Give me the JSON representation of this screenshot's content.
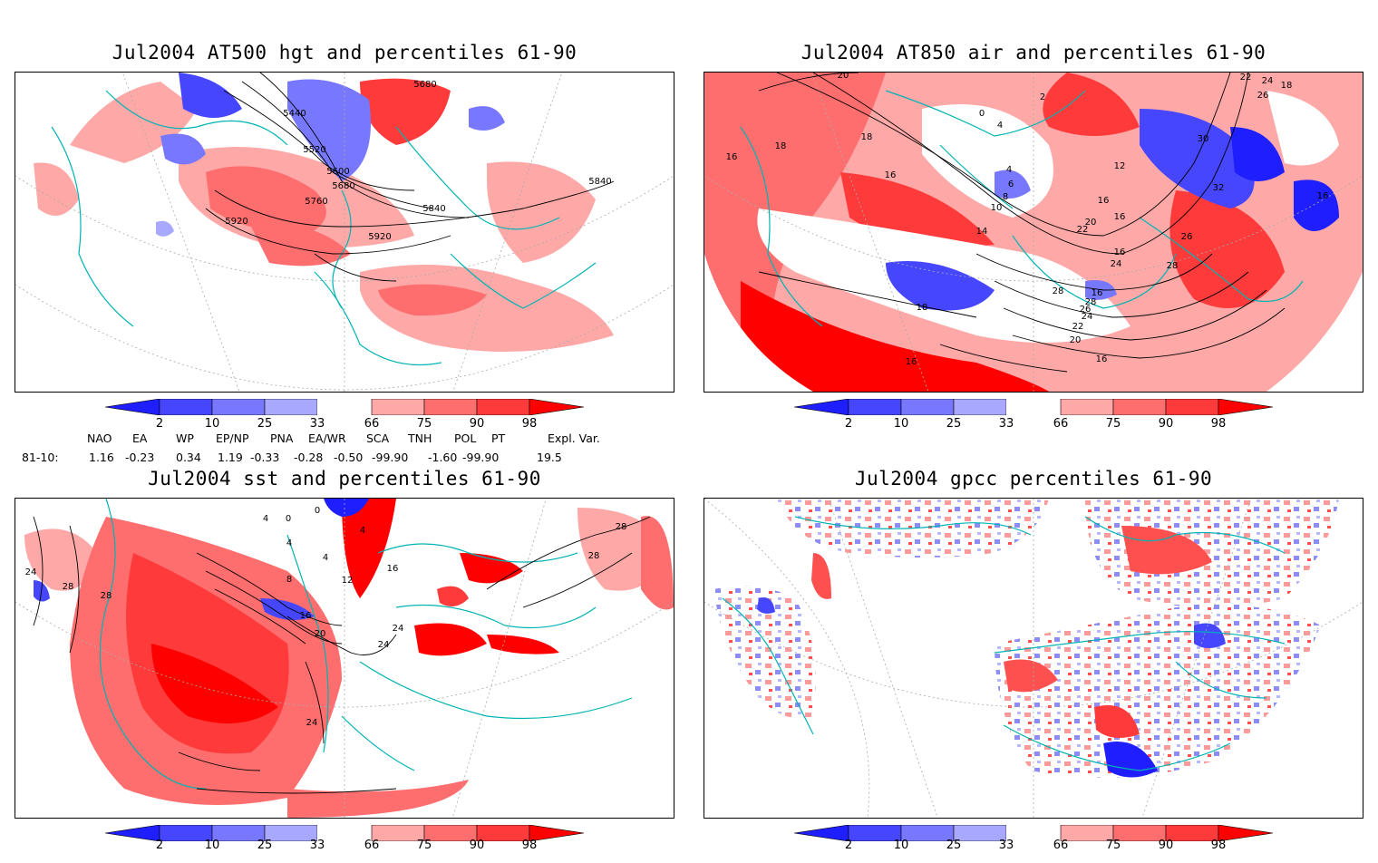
{
  "panels": [
    {
      "id": "p1",
      "title": "Jul2004 AT500 hgt and percentiles 61-90",
      "contour_labels": [
        "5680",
        "5440",
        "5520",
        "5600",
        "5680",
        "5760",
        "5840",
        "5840",
        "5920",
        "5920"
      ]
    },
    {
      "id": "p2",
      "title": "Jul2004 AT850 air and percentiles 61-90",
      "contour_labels": [
        "20",
        "2",
        "22",
        "24",
        "26",
        "18",
        "18",
        "0",
        "4",
        "16",
        "16",
        "18",
        "4",
        "6",
        "8",
        "10",
        "12",
        "30",
        "14",
        "16",
        "20",
        "22",
        "16",
        "32",
        "16",
        "24",
        "26",
        "28",
        "28",
        "16",
        "28",
        "26",
        "24",
        "22",
        "20",
        "18",
        "16",
        "16",
        "16"
      ]
    },
    {
      "id": "p3",
      "title": "Jul2004 sst and percentiles 61-90",
      "contour_labels": [
        "4",
        "0",
        "0",
        "4",
        "4",
        "4",
        "8",
        "12",
        "16",
        "16",
        "20",
        "24",
        "24",
        "28",
        "28",
        "24",
        "28",
        "28",
        "24"
      ]
    },
    {
      "id": "p4",
      "title": "Jul2004 gpcc percentiles 61-90",
      "contour_labels": []
    }
  ],
  "colorbar": {
    "levels": [
      "2",
      "10",
      "25",
      "33",
      "66",
      "75",
      "90",
      "98"
    ],
    "colors": [
      "#1e1eff",
      "#4646ff",
      "#7878ff",
      "#a8a8ff",
      "#ffffff",
      "#ffa8a8",
      "#ff6e6e",
      "#ff3a3a",
      "#ff0000"
    ]
  },
  "indices": {
    "headers": [
      "NAO",
      "EA",
      "WP",
      "EP/NP",
      "PNA",
      "EA/WR",
      "SCA",
      "TNH",
      "POL",
      "PT",
      "Expl. Var."
    ],
    "row_label": "81-10:",
    "values": [
      "1.16",
      "-0.23",
      "0.34",
      "1.19",
      "-0.33",
      "-0.28",
      "-0.50",
      "-99.90",
      "-1.60",
      "-99.90",
      "19.5"
    ]
  }
}
